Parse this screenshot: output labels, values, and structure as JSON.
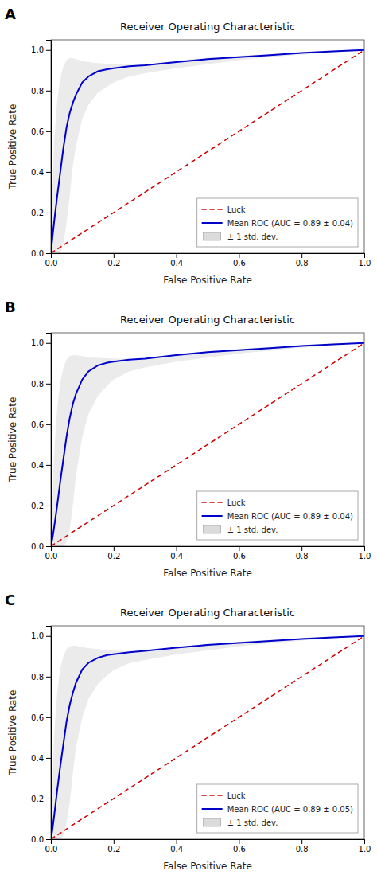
{
  "chart_data": [
    {
      "type": "line",
      "title": "Receiver Operating Characteristic",
      "xlabel": "False Positive Rate",
      "ylabel": "True Positive Rate",
      "annotations": [
        "A"
      ],
      "xlim": [
        0.0,
        1.0
      ],
      "ylim": [
        0.0,
        1.05
      ],
      "xticks": [
        {
          "value": 0.0,
          "label": "0.0"
        },
        0.2,
        0.4,
        0.6,
        0.8,
        {
          "value": 1.0,
          "label": "1.0"
        }
      ],
      "yticks": [
        {
          "value": 0.0,
          "label": "0.0"
        },
        0.2,
        0.4,
        0.6,
        0.8,
        {
          "value": 1.0,
          "label": "1.0"
        }
      ],
      "grid": false,
      "legend": "lower right",
      "series": [
        {
          "name": "Luck",
          "type": "line",
          "line_style": "dashed",
          "color": "#cc0000",
          "x": [
            0,
            1
          ],
          "values": [
            0,
            1
          ]
        },
        {
          "name": "Mean ROC (AUC = 0.89 ± 0.04)",
          "type": "line",
          "line_style": "solid",
          "color": "#0000cc",
          "x": [
            0.0,
            0.005,
            0.01,
            0.02,
            0.03,
            0.04,
            0.05,
            0.06,
            0.07,
            0.08,
            0.1,
            0.12,
            0.15,
            0.18,
            0.2,
            0.25,
            0.3,
            0.4,
            0.5,
            0.6,
            0.7,
            0.8,
            0.9,
            1.0
          ],
          "values": [
            0.0,
            0.08,
            0.15,
            0.28,
            0.4,
            0.52,
            0.62,
            0.69,
            0.74,
            0.78,
            0.84,
            0.87,
            0.895,
            0.905,
            0.91,
            0.92,
            0.925,
            0.94,
            0.955,
            0.965,
            0.975,
            0.985,
            0.993,
            1.0
          ]
        },
        {
          "name": "± 1 std. dev.",
          "type": "band",
          "color": "#b0b0b0",
          "x": [
            0.0,
            0.005,
            0.01,
            0.02,
            0.03,
            0.04,
            0.05,
            0.06,
            0.07,
            0.08,
            0.1,
            0.12,
            0.15,
            0.18,
            0.2,
            0.25,
            0.3,
            0.4,
            0.5,
            0.6,
            0.7,
            0.8,
            0.9,
            1.0
          ],
          "lower": [
            0.0,
            0.0,
            0.0,
            0.0,
            0.0,
            0.05,
            0.15,
            0.28,
            0.43,
            0.53,
            0.66,
            0.73,
            0.79,
            0.82,
            0.84,
            0.87,
            0.885,
            0.91,
            0.93,
            0.95,
            0.965,
            0.978,
            0.988,
            1.0
          ],
          "upper": [
            0.0,
            0.3,
            0.55,
            0.75,
            0.86,
            0.92,
            0.95,
            0.96,
            0.96,
            0.955,
            0.945,
            0.94,
            0.935,
            0.932,
            0.93,
            0.928,
            0.928,
            0.948,
            0.962,
            0.972,
            0.98,
            0.99,
            0.996,
            1.0
          ]
        }
      ]
    },
    {
      "type": "line",
      "title": "Receiver Operating Characteristic",
      "xlabel": "False Positive Rate",
      "ylabel": "True Positive Rate",
      "annotations": [
        "B"
      ],
      "xlim": [
        0.0,
        1.0
      ],
      "ylim": [
        0.0,
        1.05
      ],
      "xticks": [
        {
          "value": 0.0,
          "label": "0.0"
        },
        0.2,
        0.4,
        0.6,
        0.8,
        {
          "value": 1.0,
          "label": "1.0"
        }
      ],
      "yticks": [
        {
          "value": 0.0,
          "label": "0.0"
        },
        0.2,
        0.4,
        0.6,
        0.8,
        {
          "value": 1.0,
          "label": "1.0"
        }
      ],
      "grid": false,
      "legend": "lower right",
      "series": [
        {
          "name": "Luck",
          "type": "line",
          "line_style": "dashed",
          "color": "#cc0000",
          "x": [
            0,
            1
          ],
          "values": [
            0,
            1
          ]
        },
        {
          "name": "Mean ROC (AUC = 0.89 ± 0.04)",
          "type": "line",
          "line_style": "solid",
          "color": "#0000cc",
          "x": [
            0.0,
            0.005,
            0.01,
            0.02,
            0.03,
            0.04,
            0.05,
            0.06,
            0.07,
            0.08,
            0.1,
            0.12,
            0.15,
            0.18,
            0.2,
            0.25,
            0.3,
            0.4,
            0.5,
            0.6,
            0.7,
            0.8,
            0.9,
            1.0
          ],
          "values": [
            0.0,
            0.04,
            0.09,
            0.2,
            0.32,
            0.43,
            0.54,
            0.63,
            0.7,
            0.75,
            0.82,
            0.86,
            0.89,
            0.903,
            0.908,
            0.918,
            0.923,
            0.94,
            0.955,
            0.965,
            0.975,
            0.985,
            0.993,
            1.0
          ]
        },
        {
          "name": "± 1 std. dev.",
          "type": "band",
          "color": "#b0b0b0",
          "x": [
            0.0,
            0.005,
            0.01,
            0.02,
            0.03,
            0.04,
            0.05,
            0.06,
            0.07,
            0.08,
            0.1,
            0.12,
            0.15,
            0.18,
            0.2,
            0.25,
            0.3,
            0.4,
            0.5,
            0.6,
            0.7,
            0.8,
            0.9,
            1.0
          ],
          "lower": [
            0.0,
            0.0,
            0.0,
            0.0,
            0.0,
            0.0,
            0.02,
            0.08,
            0.2,
            0.35,
            0.54,
            0.65,
            0.74,
            0.79,
            0.82,
            0.86,
            0.88,
            0.908,
            0.928,
            0.948,
            0.963,
            0.977,
            0.988,
            1.0
          ],
          "upper": [
            0.0,
            0.2,
            0.45,
            0.68,
            0.81,
            0.88,
            0.92,
            0.935,
            0.94,
            0.94,
            0.935,
            0.93,
            0.927,
            0.925,
            0.923,
            0.922,
            0.923,
            0.944,
            0.96,
            0.971,
            0.98,
            0.99,
            0.996,
            1.0
          ]
        }
      ]
    },
    {
      "type": "line",
      "title": "Receiver Operating Characteristic",
      "xlabel": "False Positive Rate",
      "ylabel": "True Positive Rate",
      "annotations": [
        "C"
      ],
      "xlim": [
        0.0,
        1.0
      ],
      "ylim": [
        0.0,
        1.05
      ],
      "xticks": [
        {
          "value": 0.0,
          "label": "0.0"
        },
        0.2,
        0.4,
        0.6,
        0.8,
        {
          "value": 1.0,
          "label": "1.0"
        }
      ],
      "yticks": [
        {
          "value": 0.0,
          "label": "0.0"
        },
        0.2,
        0.4,
        0.6,
        0.8,
        {
          "value": 1.0,
          "label": "1.0"
        }
      ],
      "grid": false,
      "legend": "lower right",
      "series": [
        {
          "name": "Luck",
          "type": "line",
          "line_style": "dashed",
          "color": "#cc0000",
          "x": [
            0,
            1
          ],
          "values": [
            0,
            1
          ]
        },
        {
          "name": "Mean ROC (AUC = 0.89 ± 0.05)",
          "type": "line",
          "line_style": "solid",
          "color": "#0000cc",
          "x": [
            0.0,
            0.005,
            0.01,
            0.02,
            0.03,
            0.04,
            0.05,
            0.06,
            0.07,
            0.08,
            0.1,
            0.12,
            0.15,
            0.18,
            0.2,
            0.25,
            0.3,
            0.4,
            0.5,
            0.6,
            0.7,
            0.8,
            0.9,
            1.0
          ],
          "values": [
            0.0,
            0.05,
            0.11,
            0.24,
            0.36,
            0.47,
            0.58,
            0.66,
            0.72,
            0.77,
            0.835,
            0.868,
            0.893,
            0.906,
            0.91,
            0.92,
            0.927,
            0.942,
            0.956,
            0.966,
            0.976,
            0.985,
            0.993,
            1.0
          ]
        },
        {
          "name": "± 1 std. dev.",
          "type": "band",
          "color": "#b0b0b0",
          "x": [
            0.0,
            0.005,
            0.01,
            0.02,
            0.03,
            0.04,
            0.05,
            0.06,
            0.07,
            0.08,
            0.1,
            0.12,
            0.15,
            0.18,
            0.2,
            0.25,
            0.3,
            0.4,
            0.5,
            0.6,
            0.7,
            0.8,
            0.9,
            1.0
          ],
          "lower": [
            0.0,
            0.0,
            0.0,
            0.0,
            0.0,
            0.02,
            0.08,
            0.18,
            0.32,
            0.45,
            0.6,
            0.69,
            0.765,
            0.808,
            0.832,
            0.866,
            0.882,
            0.909,
            0.929,
            0.949,
            0.964,
            0.978,
            0.988,
            1.0
          ],
          "upper": [
            0.0,
            0.25,
            0.5,
            0.72,
            0.84,
            0.9,
            0.935,
            0.948,
            0.952,
            0.952,
            0.945,
            0.94,
            0.935,
            0.93,
            0.928,
            0.926,
            0.926,
            0.946,
            0.961,
            0.972,
            0.98,
            0.99,
            0.996,
            1.0
          ]
        }
      ]
    }
  ]
}
